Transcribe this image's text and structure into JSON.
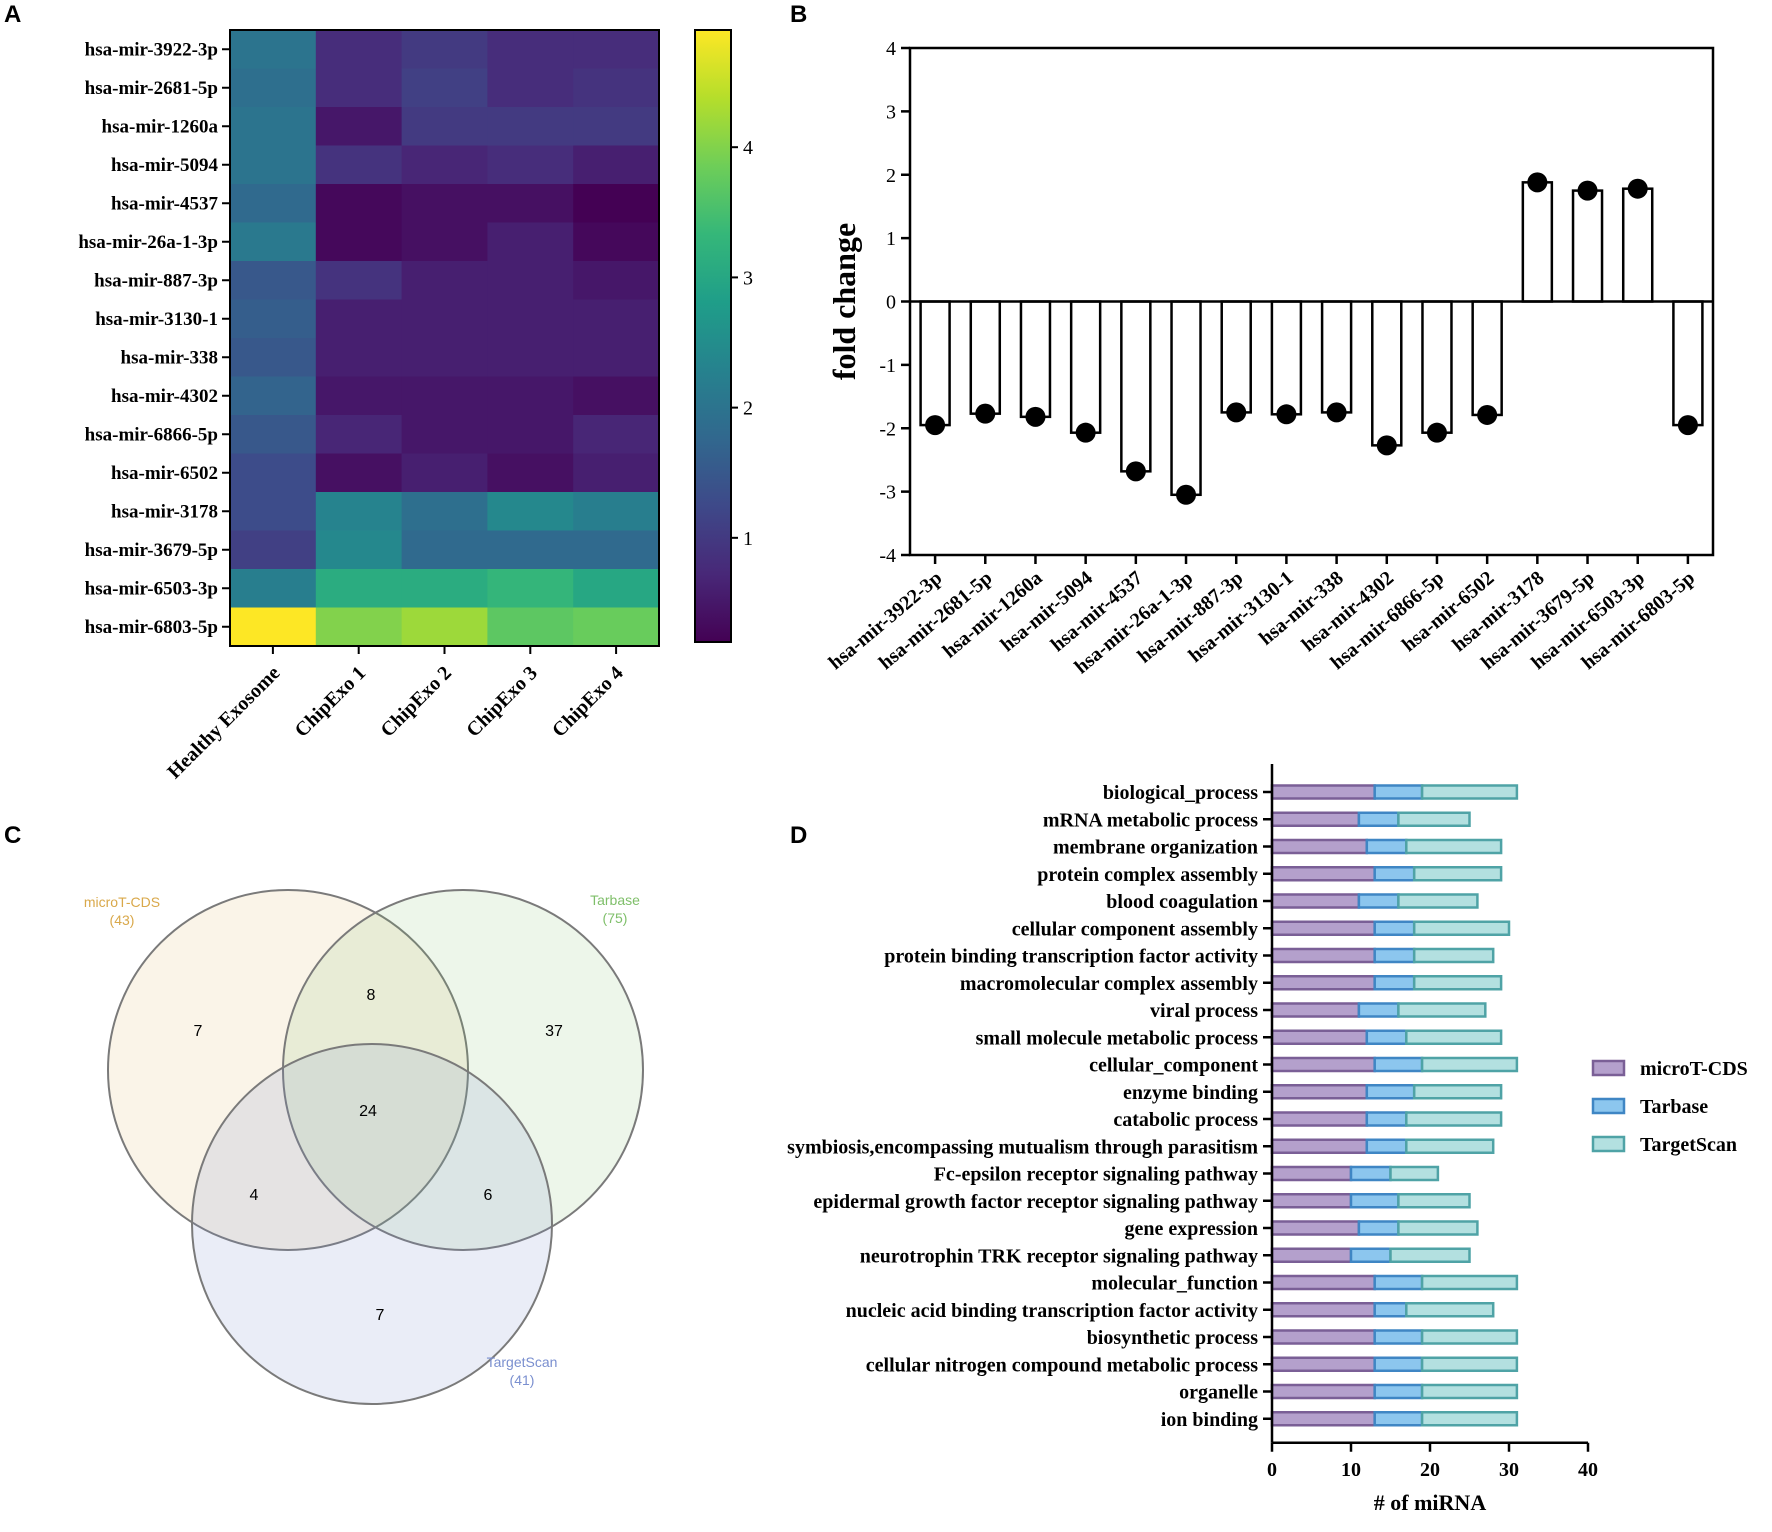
{
  "panels": {
    "a": "A",
    "b": "B",
    "c": "C",
    "d": "D"
  },
  "colors": {
    "viridis": [
      "#440154",
      "#482878",
      "#3e4989",
      "#31688e",
      "#26828e",
      "#1f9e89",
      "#35b779",
      "#6ece58",
      "#b5de2b",
      "#fde725"
    ],
    "venn_micro": "#d9b25a",
    "venn_tarbase": "#7fbf6a",
    "venn_targetscan": "#7a8fcf",
    "bar_micro": "#b4a0cc",
    "bar_micro_edge": "#7a5f96",
    "bar_tarbase": "#8cc6ee",
    "bar_tarbase_edge": "#3f86c4",
    "bar_targetscan": "#b3e0e0",
    "bar_targetscan_edge": "#4fa3a6"
  },
  "chart_data": [
    {
      "id": "heatmap",
      "type": "heatmap",
      "rows": [
        "hsa-mir-3922-3p",
        "hsa-mir-2681-5p",
        "hsa-mir-1260a",
        "hsa-mir-5094",
        "hsa-mir-4537",
        "hsa-mir-26a-1-3p",
        "hsa-mir-887-3p",
        "hsa-mir-3130-1",
        "hsa-mir-338",
        "hsa-mir-4302",
        "hsa-mir-6866-5p",
        "hsa-mir-6502",
        "hsa-mir-3178",
        "hsa-mir-3679-5p",
        "hsa-mir-6503-3p",
        "hsa-mir-6803-5p"
      ],
      "columns": [
        "Healthy Exosome",
        "ChipExo 1",
        "ChipExo 2",
        "ChipExo 3",
        "ChipExo 4"
      ],
      "values": [
        [
          2.0,
          0.8,
          1.0,
          0.8,
          0.8
        ],
        [
          1.9,
          0.8,
          1.1,
          0.8,
          0.9
        ],
        [
          2.0,
          0.5,
          1.0,
          1.0,
          1.0
        ],
        [
          2.0,
          0.9,
          0.7,
          0.8,
          0.6
        ],
        [
          1.8,
          0.3,
          0.4,
          0.4,
          0.2
        ],
        [
          2.1,
          0.3,
          0.4,
          0.6,
          0.3
        ],
        [
          1.5,
          0.9,
          0.6,
          0.6,
          0.5
        ],
        [
          1.6,
          0.6,
          0.6,
          0.6,
          0.6
        ],
        [
          1.5,
          0.6,
          0.6,
          0.6,
          0.6
        ],
        [
          1.7,
          0.5,
          0.5,
          0.5,
          0.4
        ],
        [
          1.5,
          0.7,
          0.5,
          0.5,
          0.7
        ],
        [
          1.3,
          0.4,
          0.6,
          0.4,
          0.6
        ],
        [
          1.3,
          2.3,
          1.9,
          2.4,
          2.2
        ],
        [
          1.1,
          2.4,
          1.8,
          1.8,
          1.8
        ],
        [
          2.2,
          3.1,
          3.1,
          3.3,
          3.0
        ],
        [
          4.9,
          4.0,
          4.2,
          3.7,
          3.8
        ]
      ],
      "colorbar": {
        "min": 0.2,
        "max": 4.9,
        "ticks": [
          1,
          2,
          3,
          4
        ]
      }
    },
    {
      "id": "fold-change",
      "type": "bar",
      "categories": [
        "hsa-mir-3922-3p",
        "hsa-mir-2681-5p",
        "hsa-mir-1260a",
        "hsa-mir-5094",
        "hsa-mir-4537",
        "hsa-mir-26a-1-3p",
        "hsa-mir-887-3p",
        "hsa-mir-3130-1",
        "hsa-mir-338",
        "hsa-mir-4302",
        "hsa-mir-6866-5p",
        "hsa-mir-6502",
        "hsa-mir-3178",
        "hsa-mir-3679-5p",
        "hsa-mir-6503-3p",
        "hsa-mir-6803-5p"
      ],
      "values": [
        -1.95,
        -1.77,
        -1.82,
        -2.07,
        -2.68,
        -3.05,
        -1.75,
        -1.78,
        -1.75,
        -2.27,
        -2.07,
        -1.79,
        1.88,
        1.75,
        1.78,
        -1.95
      ],
      "ylabel": "fold change",
      "ylim": [
        -4,
        4
      ],
      "yticks": [
        -4,
        -3,
        -2,
        -1,
        0,
        1,
        2,
        3,
        4
      ]
    },
    {
      "id": "venn",
      "type": "venn",
      "sets": [
        {
          "name": "microT-CDS",
          "size": "(43)"
        },
        {
          "name": "Tarbase",
          "size": "(75)"
        },
        {
          "name": "TargetScan",
          "size": "(41)"
        }
      ],
      "regions": {
        "micro_only": 7,
        "micro_tarbase": 8,
        "tarbase_only": 37,
        "all_three": 24,
        "micro_targetscan": 4,
        "tarbase_targetscan": 6,
        "targetscan_only": 7
      }
    },
    {
      "id": "go-terms",
      "type": "bar",
      "orientation": "horizontal-stacked",
      "categories": [
        "biological_process",
        "mRNA metabolic process",
        "membrane organization",
        "protein complex assembly",
        "blood coagulation",
        "cellular component assembly",
        "protein binding transcription factor activity",
        "macromolecular complex assembly",
        "viral process",
        "small molecule metabolic process",
        "cellular_component",
        "enzyme binding",
        "catabolic process",
        "symbiosis,encompassing mutualism through parasitism",
        "Fc-epsilon receptor signaling pathway",
        "epidermal growth factor receptor signaling pathway",
        "gene expression",
        "neurotrophin TRK receptor signaling pathway",
        "molecular_function",
        "nucleic acid binding transcription factor activity",
        "biosynthetic process",
        "cellular nitrogen compound metabolic process",
        "organelle",
        "ion binding"
      ],
      "series": [
        {
          "name": "microT-CDS",
          "values": [
            13,
            11,
            12,
            13,
            11,
            13,
            13,
            13,
            11,
            12,
            13,
            12,
            12,
            12,
            10,
            10,
            11,
            10,
            13,
            13,
            13,
            13,
            13,
            13
          ]
        },
        {
          "name": "Tarbase",
          "values": [
            6,
            5,
            5,
            5,
            5,
            5,
            5,
            5,
            5,
            5,
            6,
            6,
            5,
            5,
            5,
            6,
            5,
            5,
            6,
            4,
            6,
            6,
            6,
            6
          ]
        },
        {
          "name": "TargetScan",
          "values": [
            12,
            9,
            12,
            11,
            10,
            12,
            10,
            11,
            11,
            12,
            12,
            11,
            12,
            11,
            6,
            9,
            10,
            10,
            12,
            11,
            12,
            12,
            12,
            12
          ]
        }
      ],
      "xlabel": "# of miRNA",
      "xlim": [
        0,
        40
      ],
      "xticks": [
        0,
        10,
        20,
        30,
        40
      ]
    }
  ]
}
